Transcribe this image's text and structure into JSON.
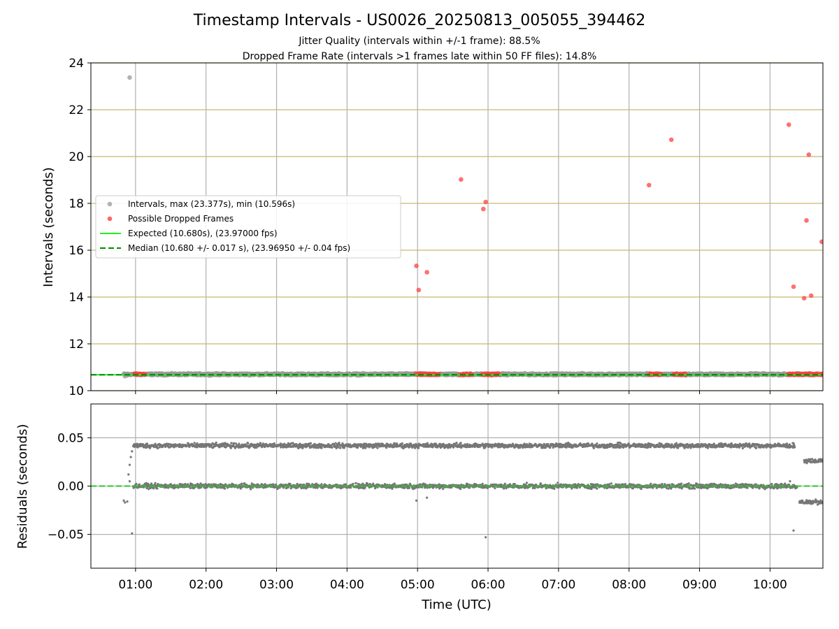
{
  "titles": {
    "main": "Timestamp Intervals - US0026_20250813_005055_394462",
    "sub1": "Jitter Quality (intervals within +/-1 frame): 88.5%",
    "sub2": "Dropped Frame Rate (intervals >1 frames late within 50 FF files): 14.8%"
  },
  "chart_data": [
    {
      "type": "scatter",
      "panel": "intervals",
      "ylabel": "Intervals (seconds)",
      "ylim": [
        10,
        24
      ],
      "yticks": [
        "10",
        "12",
        "14",
        "16",
        "18",
        "20",
        "22",
        "24"
      ],
      "ytick_values": [
        10,
        12,
        14,
        16,
        18,
        20,
        22,
        24
      ],
      "xlim": [
        "00:22",
        "10:45"
      ],
      "horizontal_grid": "on (olive)",
      "vertical_grid": "on (gray)",
      "legend": {
        "placement": "center-left",
        "entries": [
          {
            "label": "Intervals, max (23.377s), min (10.596s)",
            "marker": "gray-dot"
          },
          {
            "label": "Possible Dropped Frames",
            "marker": "red-dot"
          },
          {
            "label": "Expected (10.680s), (23.97000 fps)",
            "marker": "solid-line"
          },
          {
            "label": "Median (10.680 +/- 0.017 s), (23.96950 +/- 0.04 fps)",
            "marker": "dashed-line"
          }
        ]
      },
      "series": [
        {
          "name": "Intervals, max (23.377s), min (10.596s)",
          "color": "#999999",
          "baseline_band": {
            "from": "00:50",
            "to": "10:45",
            "y": 10.7
          },
          "points": [
            {
              "x": "00:55",
              "y": 23.377
            },
            {
              "x": "00:51",
              "y": 10.62
            },
            {
              "x": "00:53",
              "y": 10.65
            }
          ]
        },
        {
          "name": "Possible Dropped Frames",
          "color": "#ff4040",
          "points": [
            {
              "x": "04:59",
              "y": 15.33
            },
            {
              "x": "05:01",
              "y": 14.3
            },
            {
              "x": "05:08",
              "y": 15.06
            },
            {
              "x": "05:37",
              "y": 19.02
            },
            {
              "x": "05:56",
              "y": 17.76
            },
            {
              "x": "05:58",
              "y": 18.06
            },
            {
              "x": "08:17",
              "y": 18.78
            },
            {
              "x": "08:36",
              "y": 20.72
            },
            {
              "x": "10:16",
              "y": 21.36
            },
            {
              "x": "10:20",
              "y": 14.44
            },
            {
              "x": "10:29",
              "y": 13.95
            },
            {
              "x": "10:31",
              "y": 17.27
            },
            {
              "x": "10:33",
              "y": 20.08
            },
            {
              "x": "10:35",
              "y": 14.06
            },
            {
              "x": "10:44",
              "y": 16.36
            }
          ],
          "baseline_clusters": [
            {
              "from": "00:59",
              "to": "01:08"
            },
            {
              "from": "04:59",
              "to": "05:18"
            },
            {
              "from": "05:36",
              "to": "05:46"
            },
            {
              "from": "05:55",
              "to": "06:09"
            },
            {
              "from": "08:17",
              "to": "08:27"
            },
            {
              "from": "08:38",
              "to": "08:48"
            },
            {
              "from": "10:15",
              "to": "10:45"
            }
          ]
        },
        {
          "name": "Expected (10.680s), (23.97000 fps)",
          "type": "hline",
          "y": 10.68,
          "color": "#22ee22"
        },
        {
          "name": "Median (10.680 +/- 0.017 s), (23.96950 +/- 0.04 fps)",
          "type": "hline",
          "y": 10.68,
          "color": "#008800",
          "dashed": true
        }
      ]
    },
    {
      "type": "scatter",
      "panel": "residuals",
      "xlabel": "Time (UTC)",
      "ylabel": "Residuals (seconds)",
      "ylim": [
        -0.085,
        0.085
      ],
      "yticks": [
        "−0.05",
        "0.00",
        "0.05"
      ],
      "ytick_values": [
        -0.05,
        0,
        0.05
      ],
      "xlim": [
        "00:22",
        "10:45"
      ],
      "xticks": [
        "01:00",
        "02:00",
        "03:00",
        "04:00",
        "05:00",
        "06:00",
        "07:00",
        "08:00",
        "09:00",
        "10:00"
      ],
      "grid": "on",
      "series": [
        {
          "name": "",
          "color": "#777777",
          "band": {
            "from": "00:58",
            "to": "10:21",
            "y": 0.0419
          }
        },
        {
          "name": "",
          "color": "#777777",
          "band": {
            "from": "00:58",
            "to": "10:23",
            "y": 0.0
          }
        },
        {
          "name": "",
          "color": "#777777",
          "band": {
            "from": "10:29",
            "to": "10:45",
            "y": 0.0262
          }
        },
        {
          "name": "",
          "color": "#777777",
          "band": {
            "from": "10:25",
            "to": "10:45",
            "y": -0.0165
          }
        },
        {
          "name": "",
          "color": "#777777",
          "points": [
            {
              "x": "00:50",
              "y": -0.015
            },
            {
              "x": "00:51",
              "y": -0.017
            },
            {
              "x": "00:53",
              "y": -0.016
            },
            {
              "x": "00:55",
              "y": 0.022
            },
            {
              "x": "00:56",
              "y": 0.03
            },
            {
              "x": "00:57",
              "y": 0.036
            },
            {
              "x": "00:54",
              "y": 0.012
            },
            {
              "x": "00:55",
              "y": 0.005
            },
            {
              "x": "00:57",
              "y": -0.049
            },
            {
              "x": "04:59",
              "y": -0.015
            },
            {
              "x": "05:08",
              "y": -0.012
            },
            {
              "x": "05:58",
              "y": -0.053
            },
            {
              "x": "10:20",
              "y": -0.046
            },
            {
              "x": "10:17",
              "y": 0.005
            }
          ]
        },
        {
          "name": "",
          "type": "hline",
          "y": 0,
          "color": "#22cc22",
          "dashed": true
        }
      ]
    }
  ]
}
